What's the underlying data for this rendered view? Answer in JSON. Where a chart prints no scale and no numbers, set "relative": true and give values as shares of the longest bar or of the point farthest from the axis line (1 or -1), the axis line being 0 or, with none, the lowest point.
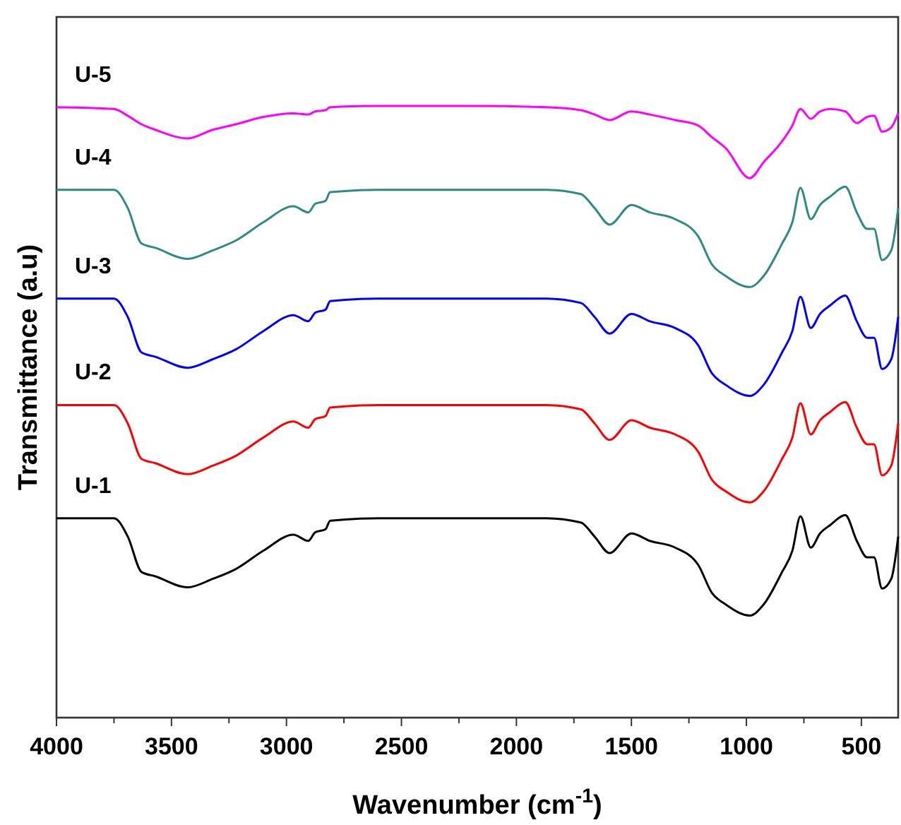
{
  "chart_data": {
    "type": "line",
    "relative": true,
    "xlabel": "Wavenumber (cm$^{-1}$)",
    "ylabel": "Transmittance (a.u)",
    "xlim": [
      4000,
      340
    ],
    "xticks": [
      4000,
      {
        "value": 3750,
        "label": null
      },
      3500,
      {
        "value": 3250,
        "label": null
      },
      3000,
      {
        "value": 2750,
        "label": null
      },
      2500,
      {
        "value": 2250,
        "label": null
      },
      2000,
      {
        "value": 1750,
        "label": null
      },
      1500,
      {
        "value": 1250,
        "label": null
      },
      1000,
      {
        "value": 750,
        "label": null
      },
      500
    ],
    "x": [
      4000,
      3750,
      3690,
      3630,
      3570,
      3430,
      3320,
      3220,
      3100,
      2970,
      2905,
      2875,
      2830,
      2810,
      2600,
      2200,
      1870,
      1720,
      1660,
      1595,
      1500,
      1420,
      1310,
      1210,
      1150,
      1090,
      985,
      925,
      845,
      800,
      765,
      720,
      680,
      635,
      570,
      520,
      475,
      445,
      410,
      370,
      340
    ],
    "legend": false,
    "marker": "none",
    "line_style": "solid",
    "series": [
      {
        "name": "U-1",
        "color": "#000000",
        "values": [
          0.326,
          0.326,
          0.296,
          0.238,
          0.231,
          0.213,
          0.227,
          0.243,
          0.273,
          0.299,
          0.289,
          0.303,
          0.308,
          0.322,
          0.326,
          0.326,
          0.326,
          0.319,
          0.296,
          0.269,
          0.301,
          0.289,
          0.278,
          0.25,
          0.204,
          0.185,
          0.167,
          0.185,
          0.238,
          0.273,
          0.329,
          0.278,
          0.301,
          0.315,
          0.331,
          0.289,
          0.262,
          0.262,
          0.211,
          0.227,
          0.296
        ]
      },
      {
        "name": "U-2",
        "color": "#ff0000",
        "values": [
          0.511,
          0.511,
          0.481,
          0.423,
          0.416,
          0.398,
          0.412,
          0.428,
          0.458,
          0.484,
          0.474,
          0.488,
          0.493,
          0.507,
          0.511,
          0.511,
          0.511,
          0.504,
          0.481,
          0.454,
          0.486,
          0.474,
          0.463,
          0.435,
          0.389,
          0.37,
          0.352,
          0.37,
          0.423,
          0.458,
          0.514,
          0.463,
          0.486,
          0.5,
          0.516,
          0.474,
          0.447,
          0.447,
          0.396,
          0.412,
          0.481
        ]
      },
      {
        "name": "U-3",
        "color": "#0000ff",
        "values": [
          0.685,
          0.685,
          0.655,
          0.597,
          0.59,
          0.572,
          0.586,
          0.602,
          0.632,
          0.658,
          0.648,
          0.662,
          0.667,
          0.681,
          0.685,
          0.685,
          0.685,
          0.678,
          0.655,
          0.628,
          0.66,
          0.648,
          0.637,
          0.609,
          0.563,
          0.544,
          0.526,
          0.544,
          0.597,
          0.632,
          0.688,
          0.637,
          0.66,
          0.674,
          0.69,
          0.648,
          0.621,
          0.621,
          0.57,
          0.586,
          0.655
        ]
      },
      {
        "name": "U-4",
        "color": "#2e8b84",
        "values": [
          0.863,
          0.863,
          0.833,
          0.775,
          0.768,
          0.75,
          0.764,
          0.78,
          0.81,
          0.836,
          0.826,
          0.84,
          0.845,
          0.859,
          0.863,
          0.863,
          0.863,
          0.856,
          0.833,
          0.806,
          0.838,
          0.826,
          0.815,
          0.787,
          0.741,
          0.722,
          0.704,
          0.722,
          0.775,
          0.81,
          0.866,
          0.815,
          0.838,
          0.852,
          0.868,
          0.826,
          0.799,
          0.799,
          0.748,
          0.764,
          0.833
        ]
      },
      {
        "name": "U-5",
        "color": "#ff00ff",
        "values": [
          0.998,
          0.995,
          0.984,
          0.97,
          0.961,
          0.947,
          0.961,
          0.97,
          0.982,
          0.988,
          0.986,
          0.991,
          0.993,
          0.998,
          1,
          1,
          0.998,
          0.993,
          0.986,
          0.977,
          0.991,
          0.986,
          0.977,
          0.968,
          0.949,
          0.931,
          0.882,
          0.908,
          0.942,
          0.968,
          0.995,
          0.979,
          0.991,
          0.995,
          0.991,
          0.972,
          0.982,
          0.984,
          0.958,
          0.965,
          0.988
        ]
      }
    ]
  }
}
